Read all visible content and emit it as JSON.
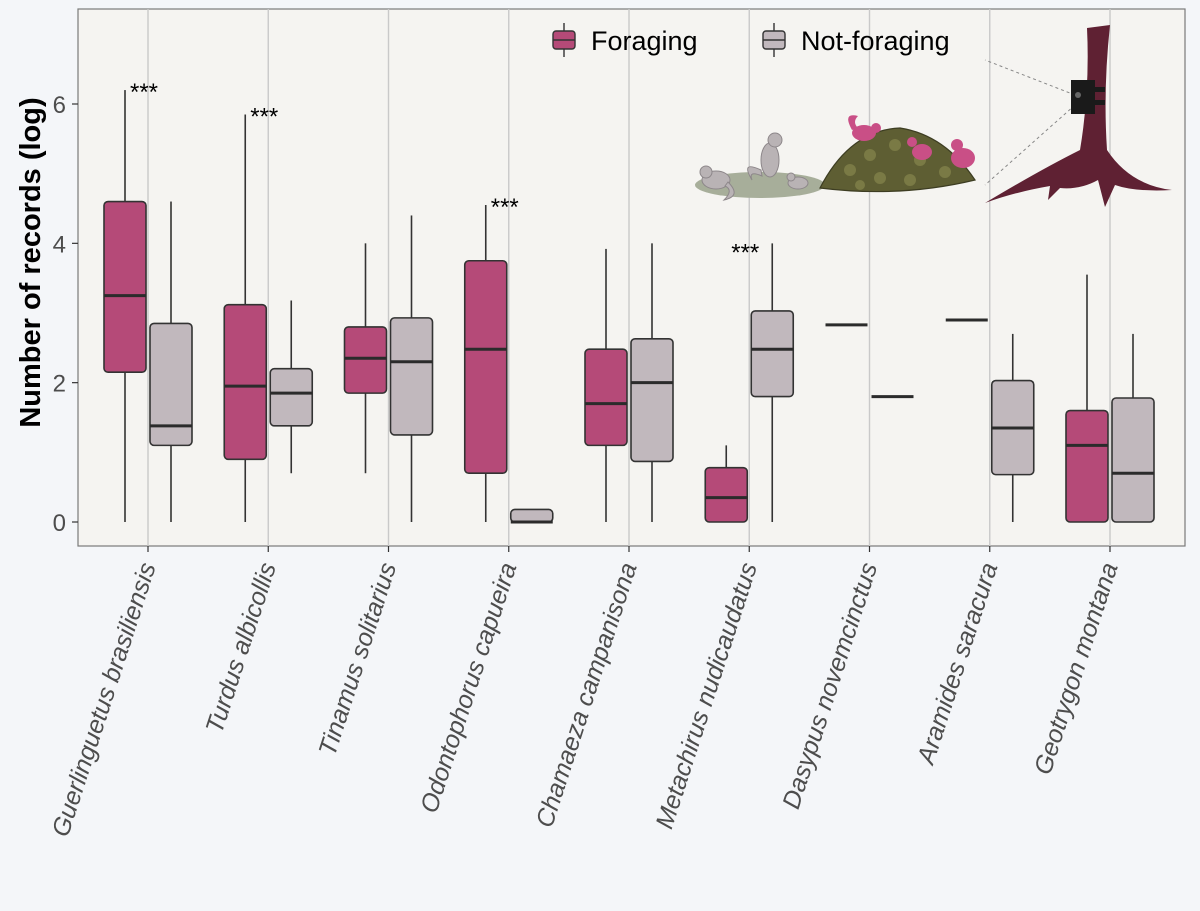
{
  "chart_data": {
    "type": "boxplot",
    "ylabel": "Number of records (log)",
    "ylim": [
      -0.35,
      7.35
    ],
    "yticks": [
      0,
      2,
      4,
      6
    ],
    "grid": "vertical lines at categories",
    "legend_position": "top-center",
    "categories": [
      "Guerlinguetus brasiliensis",
      "Turdus albicollis",
      "Tinamus solitarius",
      "Odontophorus capueira",
      "Chamaeza campanisona",
      "Metachirus nudicaudatus",
      "Dasypus novemcinctus",
      "Aramides saracura",
      "Geotrygon montana"
    ],
    "series": [
      {
        "name": "Foraging",
        "color": "#b54a78",
        "boxes": [
          {
            "min": 0,
            "q1": 2.15,
            "median": 3.25,
            "q3": 4.6,
            "max": 6.2
          },
          {
            "min": 0,
            "q1": 0.9,
            "median": 1.95,
            "q3": 3.12,
            "max": 5.85
          },
          {
            "min": 0.7,
            "q1": 1.85,
            "median": 2.35,
            "q3": 2.8,
            "max": 4.0
          },
          {
            "min": 0,
            "q1": 0.7,
            "median": 2.48,
            "q3": 3.75,
            "max": 4.55
          },
          {
            "min": 0,
            "q1": 1.1,
            "median": 1.7,
            "q3": 2.48,
            "max": 3.92
          },
          {
            "min": 0,
            "q1": 0,
            "median": 0.35,
            "q3": 0.78,
            "max": 1.1
          },
          {
            "min": 2.83,
            "q1": 2.83,
            "median": 2.83,
            "q3": 2.83,
            "max": 2.83
          },
          {
            "min": 2.9,
            "q1": 2.9,
            "median": 2.9,
            "q3": 2.9,
            "max": 2.9
          },
          {
            "min": 0,
            "q1": 0,
            "median": 1.1,
            "q3": 1.6,
            "max": 3.55
          }
        ]
      },
      {
        "name": "Not-foraging",
        "color": "#c1b8bd",
        "boxes": [
          {
            "min": 0,
            "q1": 1.1,
            "median": 1.38,
            "q3": 2.85,
            "max": 4.6
          },
          {
            "min": 0.7,
            "q1": 1.38,
            "median": 1.85,
            "q3": 2.2,
            "max": 3.18
          },
          {
            "min": 0,
            "q1": 1.25,
            "median": 2.3,
            "q3": 2.93,
            "max": 4.4
          },
          {
            "min": 0,
            "q1": 0,
            "median": 0,
            "q3": 0.18,
            "max": 0.18
          },
          {
            "min": 0,
            "q1": 0.87,
            "median": 2.0,
            "q3": 2.63,
            "max": 4.0
          },
          {
            "min": 0,
            "q1": 1.8,
            "median": 2.48,
            "q3": 3.03,
            "max": 4.0
          },
          {
            "min": 1.8,
            "q1": 1.8,
            "median": 1.8,
            "q3": 1.8,
            "max": 1.8
          },
          {
            "min": 0,
            "q1": 0.68,
            "median": 1.35,
            "q3": 2.03,
            "max": 2.7
          },
          {
            "min": 0,
            "q1": 0,
            "median": 0.7,
            "q3": 1.78,
            "max": 2.7
          }
        ]
      }
    ],
    "annotations": [
      {
        "category_index": 0,
        "text": "***",
        "y": 6.2
      },
      {
        "category_index": 1,
        "text": "***",
        "y": 5.85
      },
      {
        "category_index": 3,
        "text": "***",
        "y": 4.55
      },
      {
        "category_index": 5,
        "text": "***",
        "y": 3.9
      }
    ]
  },
  "illustration": {
    "icons": [
      "squirrel-icon",
      "bird-icon",
      "leaf-litter-icon",
      "tree-icon",
      "camera-trap-icon"
    ]
  }
}
